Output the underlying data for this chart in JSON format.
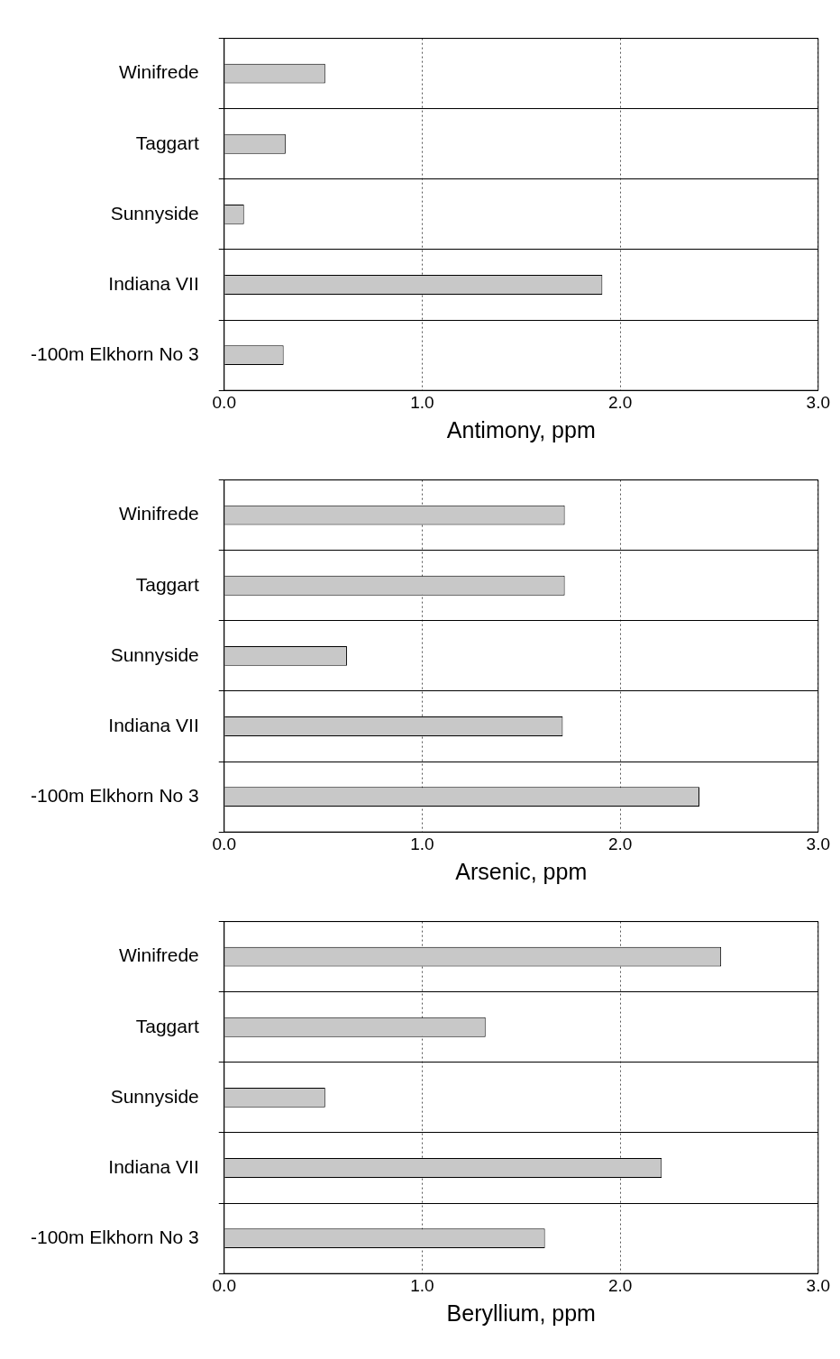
{
  "chart_data": [
    {
      "type": "bar",
      "orientation": "horizontal",
      "categories": [
        "Winifrede",
        "Taggart",
        "Sunnyside",
        "Indiana VII",
        "-100m Elkhorn No 3"
      ],
      "values": [
        0.51,
        0.31,
        0.1,
        1.91,
        0.3
      ],
      "color": "#c8c8c8",
      "xlabel": "Antimony, ppm",
      "xlim": [
        0,
        3
      ],
      "xticks": [
        {
          "value": 0,
          "label": "0.0"
        },
        {
          "value": 1,
          "label": "1.0"
        },
        {
          "value": 2,
          "label": "2.0"
        },
        {
          "value": 3,
          "label": "3.0"
        }
      ],
      "grid": true
    },
    {
      "type": "bar",
      "orientation": "horizontal",
      "categories": [
        "Winifrede",
        "Taggart",
        "Sunnyside",
        "Indiana VII",
        "-100m Elkhorn No 3"
      ],
      "values": [
        1.72,
        1.72,
        0.62,
        1.71,
        2.4
      ],
      "color": "#c8c8c8",
      "xlabel": "Arsenic, ppm",
      "xlim": [
        0,
        3
      ],
      "xticks": [
        {
          "value": 0,
          "label": "0.0"
        },
        {
          "value": 1,
          "label": "1.0"
        },
        {
          "value": 2,
          "label": "2.0"
        },
        {
          "value": 3,
          "label": "3.0"
        }
      ],
      "grid": true
    },
    {
      "type": "bar",
      "orientation": "horizontal",
      "categories": [
        "Winifrede",
        "Taggart",
        "Sunnyside",
        "Indiana VII",
        "-100m Elkhorn No 3"
      ],
      "values": [
        2.51,
        1.32,
        0.51,
        2.21,
        1.62
      ],
      "color": "#c8c8c8",
      "xlabel": "Beryllium, ppm",
      "xlim": [
        0,
        3
      ],
      "xticks": [
        {
          "value": 0,
          "label": "0.0"
        },
        {
          "value": 1,
          "label": "1.0"
        },
        {
          "value": 2,
          "label": "2.0"
        },
        {
          "value": 3,
          "label": "3.0"
        }
      ],
      "grid": true
    }
  ]
}
